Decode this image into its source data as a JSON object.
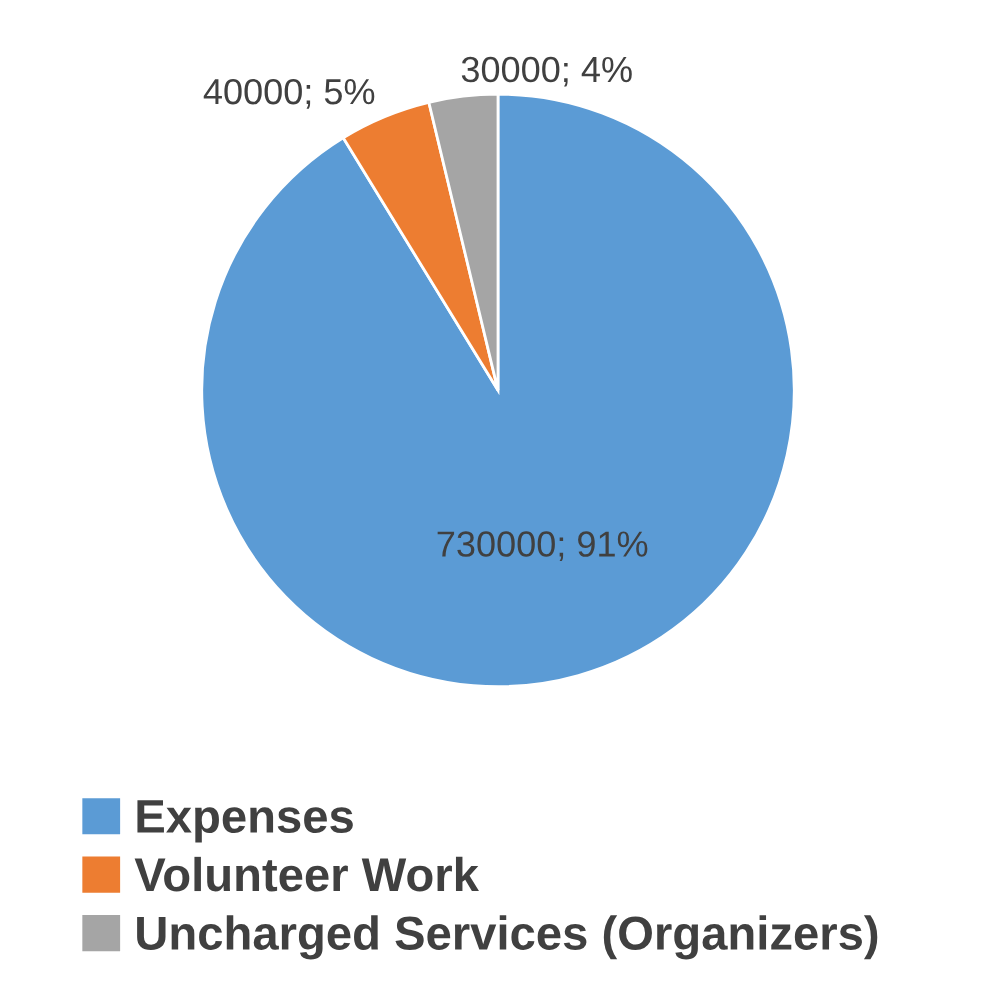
{
  "chart_data": {
    "type": "pie",
    "categories": [
      "Expenses",
      "Volunteer Work",
      "Uncharged Services (Organizers)"
    ],
    "values": [
      730000,
      40000,
      30000
    ],
    "value_labels": [
      "730000; 91%",
      "40000; 5%",
      "30000; 4%"
    ],
    "colors": [
      "#5b9bd5",
      "#ed7d31",
      "#a5a5a5"
    ],
    "legend": "bottom"
  }
}
